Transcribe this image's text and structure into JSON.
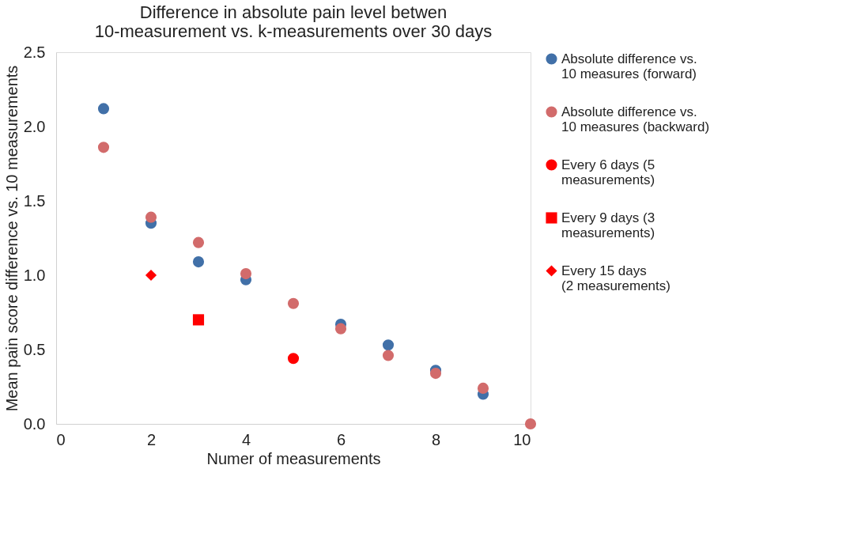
{
  "chart_data": {
    "type": "scatter",
    "title": "Difference in absolute pain level betwen 10-measurement vs. k-measurements over 30 days",
    "xlabel": "Numer of measurements",
    "ylabel": "Mean pain score difference vs. 10 measurements",
    "xlim": [
      0,
      10
    ],
    "xticks": [
      0,
      2,
      4,
      6,
      8,
      10
    ],
    "ylim": [
      0,
      2.5
    ],
    "yticks": [
      {
        "value": 0,
        "label": "0.0"
      },
      0.5,
      {
        "value": 1,
        "label": "1.0"
      },
      1.5,
      {
        "value": 2,
        "label": "2.0"
      },
      2.5
    ],
    "grid": false,
    "legend": "right",
    "series": [
      {
        "name": "Absolute difference vs. 10 measures (forward)",
        "color": "#4170a8",
        "marker": "circle",
        "x": [
          1,
          2,
          3,
          4,
          5,
          6,
          7,
          8,
          9
        ],
        "values": [
          2.12,
          1.35,
          1.09,
          0.97,
          null,
          0.67,
          0.53,
          0.36,
          0.2
        ]
      },
      {
        "name": "Absolute difference vs. 10 measures (backward)",
        "color": "#d26b6b",
        "marker": "circle",
        "x": [
          1,
          2,
          3,
          4,
          5,
          6,
          7,
          8,
          9,
          10
        ],
        "values": [
          1.86,
          1.39,
          1.22,
          1.01,
          0.81,
          0.64,
          0.46,
          0.34,
          0.24,
          0
        ]
      },
      {
        "name": "Every 6 days (5 measurements)",
        "color": "#ff0000",
        "marker": "circle",
        "x": [
          5
        ],
        "values": [
          0.44
        ]
      },
      {
        "name": "Every 9 days (3 measurements)",
        "color": "#ff0000",
        "marker": "square",
        "x": [
          3
        ],
        "values": [
          0.7
        ]
      },
      {
        "name": "Every 15 days (2 measurements)",
        "color": "#ff0000",
        "marker": "diamond",
        "x": [
          2
        ],
        "values": [
          1.0
        ]
      }
    ]
  }
}
